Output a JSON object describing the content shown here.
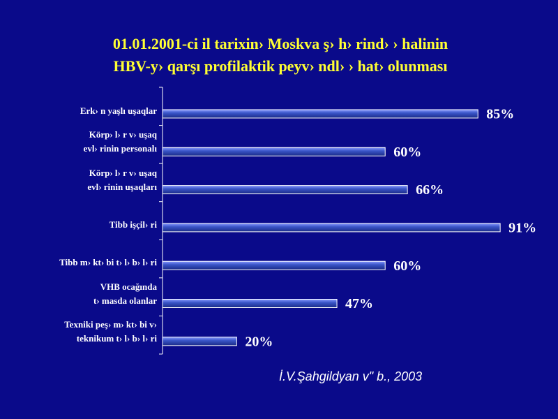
{
  "chart_data": {
    "type": "hbar",
    "title": [
      "01.01.2001-ci il tarixin› Moskva ş› h› rind› › halinin",
      "HBV-y› qarşı profilaktik peyv› ndl› › hat› olunması"
    ],
    "categories": [
      "Erk› n yaşlı uşaqlar",
      "Körp› l› r v›  uşaq\nevl› rinin personalı",
      "Körp› l› r v›  uşaq\nevl› rinin uşaqları",
      "Tibb işçil› ri",
      "Tibb m› kt› bi t› l› b› l› ri",
      "VHB ocağında\nt› masda olanlar",
      "Texniki peş›  m› kt› bi v› \nteknikum t› l› b› l› ri"
    ],
    "values": [
      85,
      60,
      66,
      91,
      60,
      47,
      20
    ],
    "value_labels": [
      "85%",
      "60%",
      "66%",
      "91%",
      "60%",
      "47%",
      "20%"
    ],
    "xlim": [
      0,
      100
    ],
    "color": "#3a55c8",
    "source": "İ.V.Şahgildyan v\"  b., 2003"
  }
}
